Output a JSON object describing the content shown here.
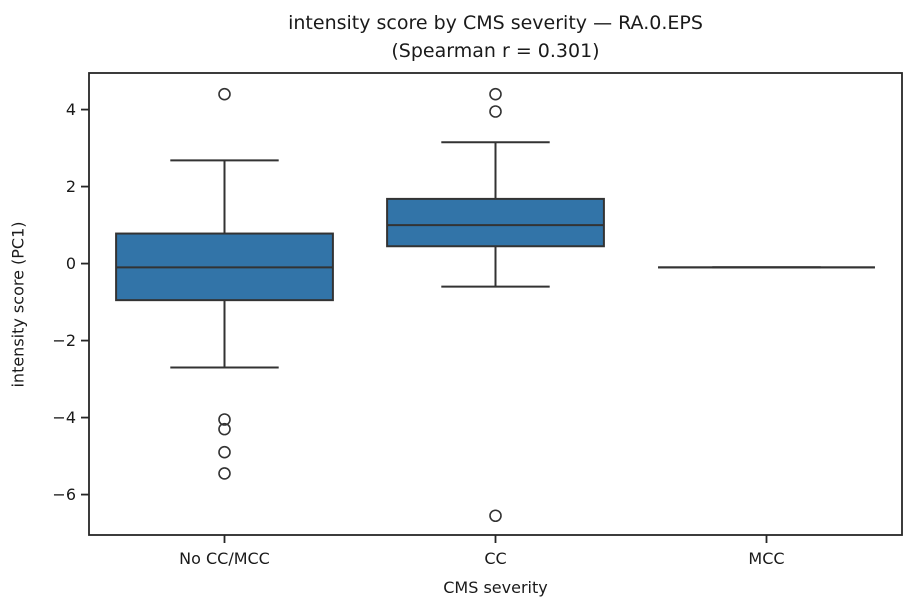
{
  "figure": {
    "title_line1": "intensity score by CMS severity — RA.0.EPS",
    "title_line2": "(Spearman r = 0.301)",
    "xlabel": "CMS severity",
    "ylabel": "intensity score (PC1)"
  },
  "chart_data": {
    "type": "boxplot",
    "title": "intensity score by CMS severity — RA.0.EPS (Spearman r = 0.301)",
    "xlabel": "CMS severity",
    "ylabel": "intensity score (PC1)",
    "categories": [
      "No CC/MCC",
      "CC",
      "MCC"
    ],
    "series": [
      {
        "category": "No CC/MCC",
        "whisker_low": -2.7,
        "q1": -0.95,
        "median": -0.1,
        "q3": 0.78,
        "whisker_high": 2.68,
        "outliers": [
          4.4,
          -4.05,
          -4.3,
          -4.9,
          -5.45
        ]
      },
      {
        "category": "CC",
        "whisker_low": -0.6,
        "q1": 0.45,
        "median": 1.0,
        "q3": 1.68,
        "whisker_high": 3.15,
        "outliers": [
          4.4,
          3.95,
          -6.55
        ]
      },
      {
        "category": "MCC",
        "whisker_low": -0.1,
        "q1": -0.1,
        "median": -0.1,
        "q3": -0.1,
        "whisker_high": -0.1,
        "outliers": []
      }
    ],
    "yticks": [
      -6,
      -4,
      -2,
      0,
      2,
      4
    ],
    "ylim": [
      -7.05,
      4.95
    ],
    "grid": false,
    "legend": null,
    "colors": {
      "box_fill": "#3274a8",
      "box_line": "#333333",
      "spine": "#262626",
      "background": "#ffffff"
    }
  }
}
